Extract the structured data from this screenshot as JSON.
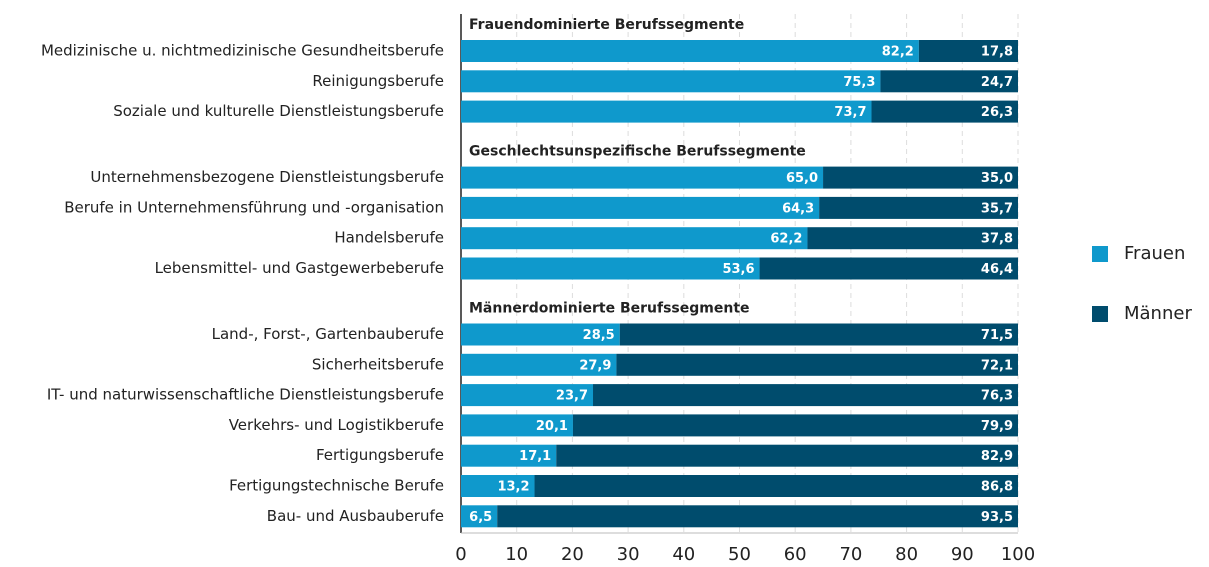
{
  "chart_data": {
    "type": "stacked-bar-horizontal",
    "groups": [
      {
        "title": "Frauendominierte Berufssegmente",
        "categories": [
          "Medizinische u. nichtmedizinische Gesundheitsberufe",
          "Reinigungsberufe",
          "Soziale und kulturelle Dienstleistungsberufe"
        ]
      },
      {
        "title": "Geschlechtsunspezifische Berufssegmente",
        "categories": [
          "Unternehmensbezogene Dienstleistungsberufe",
          "Berufe in Unternehmensführung und -organisation",
          "Handelsberufe",
          "Lebensmittel- und Gastgewerbeberufe"
        ]
      },
      {
        "title": "Männerdominierte Berufssegmente",
        "categories": [
          "Land-, Forst-, Gartenbauberufe",
          "Sicherheitsberufe",
          "IT- und naturwissenschaftliche Dienstleistungsberufe",
          "Verkehrs- und Logistikberufe",
          "Fertigungsberufe",
          "Fertigungstechnische Berufe",
          "Bau- und Ausbauberufe"
        ]
      }
    ],
    "series": [
      {
        "name": "Frauen",
        "color": "#0f99cc",
        "values": [
          82.2,
          75.3,
          73.7,
          65.0,
          64.3,
          62.2,
          53.6,
          28.5,
          27.9,
          23.7,
          20.1,
          17.1,
          13.2,
          6.5
        ],
        "value_labels": [
          "82,2",
          "75,3",
          "73,7",
          "65,0",
          "64,3",
          "62,2",
          "53,6",
          "28,5",
          "27,9",
          "23,7",
          "20,1",
          "17,1",
          "13,2",
          "6,5"
        ]
      },
      {
        "name": "Männer",
        "color": "#004c6d",
        "values": [
          17.8,
          24.7,
          26.3,
          35.0,
          35.7,
          37.8,
          46.4,
          71.5,
          72.1,
          76.3,
          79.9,
          82.9,
          86.8,
          93.5
        ],
        "value_labels": [
          "17,8",
          "24,7",
          "26,3",
          "35,0",
          "35,7",
          "37,8",
          "46,4",
          "71,5",
          "72,1",
          "76,3",
          "79,9",
          "82,9",
          "86,8",
          "93,5"
        ]
      }
    ],
    "xlim": [
      0,
      100
    ],
    "xticks": [
      0,
      10,
      20,
      30,
      40,
      50,
      60,
      70,
      80,
      90,
      100
    ],
    "grid": true,
    "legend": "right"
  }
}
